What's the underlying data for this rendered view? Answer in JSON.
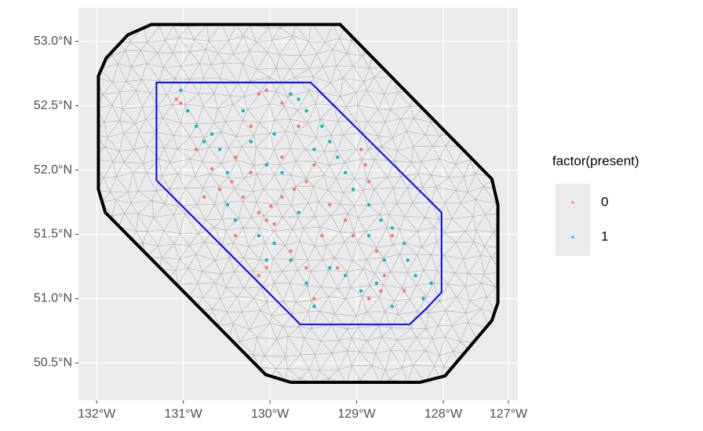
{
  "chart_data": {
    "type": "scatter",
    "legend_title": "factor(present)",
    "xlim": [
      -132.21,
      -127.14
    ],
    "ylim": [
      50.21,
      53.26
    ],
    "xticks": [
      {
        "value": -132,
        "label": "132°W"
      },
      {
        "value": -131,
        "label": "131°W"
      },
      {
        "value": -130,
        "label": "130°W"
      },
      {
        "value": -129,
        "label": "129°W"
      },
      {
        "value": -128,
        "label": "128°W"
      },
      {
        "value": -127,
        "label": "127°W"
      }
    ],
    "yticks": [
      {
        "value": 50.5,
        "label": "50.5°N"
      },
      {
        "value": 51,
        "label": "51.0°N"
      },
      {
        "value": 51.5,
        "label": "51.5°N"
      },
      {
        "value": 52,
        "label": "52.0°N"
      },
      {
        "value": 52.5,
        "label": "52.5°N"
      },
      {
        "value": 53,
        "label": "53.0°N"
      }
    ],
    "grid": true,
    "boundaries": [
      {
        "color": "#000000",
        "x": [
          -131.37,
          -129.19,
          -127.44,
          -127.37,
          -127.37,
          -127.44,
          -127.98,
          -128.27,
          -129.76,
          -130.05,
          -131.9,
          -131.98,
          -131.98,
          -131.89,
          -131.64
        ],
        "y": [
          53.13,
          53.13,
          51.93,
          51.73,
          50.97,
          50.83,
          50.4,
          50.35,
          50.35,
          50.41,
          51.67,
          51.85,
          52.73,
          52.87,
          53.05
        ]
      },
      {
        "color": "#0000ff",
        "x": [
          -131.31,
          -129.53,
          -128.02,
          -128.02,
          -128.2,
          -128.39,
          -129.65,
          -131.31
        ],
        "y": [
          52.68,
          52.68,
          51.67,
          51.05,
          50.92,
          50.8,
          50.8,
          51.92
        ]
      }
    ],
    "series": [
      {
        "name": "0",
        "color": "#F8766D",
        "x": [
          -130.67,
          -130.58,
          -130.4,
          -130.22,
          -130.13,
          -130.04,
          -129.86,
          -129.67,
          -130.13,
          -130.04,
          -129.95,
          -129.99,
          -129.86,
          -129.72,
          -129.58,
          -129.49,
          -129.31,
          -129.13,
          -128.95,
          -128.9,
          -128.86,
          -129.04,
          -128.77,
          -128.68,
          -128.72,
          -128.86,
          -129.49,
          -129.58,
          -129.76,
          -130.04,
          -130.13,
          -130.31,
          -130.44,
          -130.76,
          -130.85,
          -131.03,
          -131.08,
          -129.86,
          -129.4,
          -129.22,
          -128.59,
          -128.45,
          -130.4,
          -130.22
        ],
        "values": [
          52.01,
          51.85,
          52.1,
          52.34,
          52.59,
          52.62,
          52.52,
          52.34,
          51.67,
          51.61,
          51.58,
          51.72,
          51.79,
          51.85,
          51.91,
          52.04,
          51.73,
          51.61,
          52.16,
          52.04,
          51.91,
          51.49,
          51.37,
          51.18,
          51.06,
          51.0,
          51.0,
          51.24,
          51.37,
          51.24,
          51.18,
          51.79,
          51.91,
          51.79,
          52.16,
          52.52,
          52.55,
          52.1,
          51.49,
          51.24,
          51.49,
          51.06,
          51.49,
          51.98
        ]
      },
      {
        "name": "1",
        "color": "#00BFC4",
        "x": [
          -130.95,
          -130.85,
          -130.76,
          -130.67,
          -130.58,
          -130.49,
          -130.49,
          -130.4,
          -129.76,
          -129.67,
          -129.58,
          -129.4,
          -129.31,
          -129.22,
          -129.13,
          -129.04,
          -128.86,
          -128.72,
          -128.59,
          -128.45,
          -128.41,
          -128.32,
          -128.14,
          -128.23,
          -128.59,
          -128.77,
          -128.95,
          -129.13,
          -129.31,
          -129.49,
          -129.58,
          -129.76,
          -129.95,
          -130.04,
          -130.13,
          -129.86,
          -130.04,
          -130.22,
          -129.95,
          -129.49,
          -130.31,
          -131.03,
          -128.68,
          -128.86,
          -129.67
        ],
        "values": [
          52.46,
          52.34,
          52.22,
          52.28,
          52.16,
          51.98,
          51.73,
          51.61,
          52.59,
          52.55,
          52.46,
          52.34,
          52.22,
          52.1,
          51.98,
          51.85,
          51.73,
          51.61,
          51.55,
          51.43,
          51.3,
          51.18,
          51.12,
          51.0,
          50.94,
          51.12,
          51.06,
          51.18,
          51.24,
          50.94,
          51.12,
          51.3,
          51.43,
          51.3,
          51.49,
          51.98,
          52.04,
          52.22,
          52.28,
          52.16,
          52.46,
          52.62,
          51.3,
          51.49,
          51.67
        ]
      }
    ]
  }
}
